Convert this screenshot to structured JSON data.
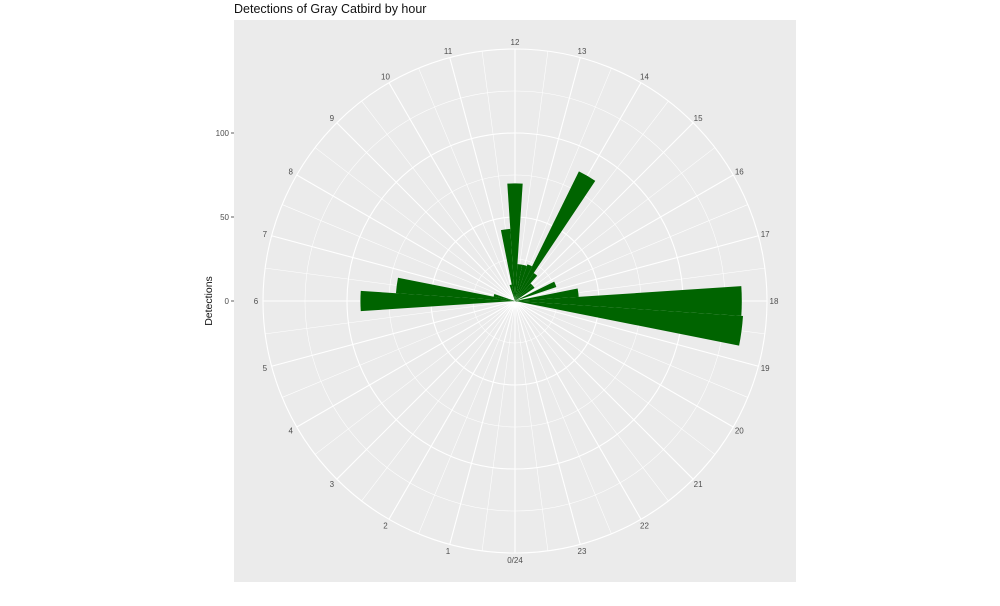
{
  "chart_data": {
    "type": "bar",
    "coord": "polar",
    "title": "Detections of Gray Catbird by hour",
    "xlabel": "",
    "ylabel": "Detections",
    "theta_labels": [
      "0/24",
      "1",
      "2",
      "3",
      "4",
      "5",
      "6",
      "7",
      "8",
      "9",
      "10",
      "11",
      "12",
      "13",
      "14",
      "15",
      "16",
      "17",
      "18",
      "19",
      "20",
      "21",
      "22",
      "23"
    ],
    "theta_range": [
      0,
      24
    ],
    "r_ticks": [
      0,
      50,
      100
    ],
    "r_tick_labels": [
      "0",
      "50",
      "100"
    ],
    "r_range": [
      0,
      150
    ],
    "bar_color": "#006400",
    "panel_color": "#ebebeb",
    "grid": true,
    "bars": [
      {
        "hour": 5.5,
        "value": 1
      },
      {
        "hour": 6.0,
        "value": 92
      },
      {
        "hour": 6.5,
        "value": 71
      },
      {
        "hour": 7.0,
        "value": 13
      },
      {
        "hour": 11.0,
        "value": 10
      },
      {
        "hour": 11.5,
        "value": 43
      },
      {
        "hour": 12.0,
        "value": 70
      },
      {
        "hour": 12.5,
        "value": 22
      },
      {
        "hour": 13.0,
        "value": 22
      },
      {
        "hour": 13.5,
        "value": 23
      },
      {
        "hour": 14.0,
        "value": 86
      },
      {
        "hour": 14.5,
        "value": 20
      },
      {
        "hour": 15.0,
        "value": 14
      },
      {
        "hour": 15.5,
        "value": 14
      },
      {
        "hour": 16.5,
        "value": 26
      },
      {
        "hour": 17.5,
        "value": 38
      },
      {
        "hour": 18.0,
        "value": 135
      },
      {
        "hour": 18.5,
        "value": 136
      },
      {
        "hour": 19.5,
        "value": 1
      },
      {
        "hour": 20.0,
        "value": 1
      }
    ]
  }
}
